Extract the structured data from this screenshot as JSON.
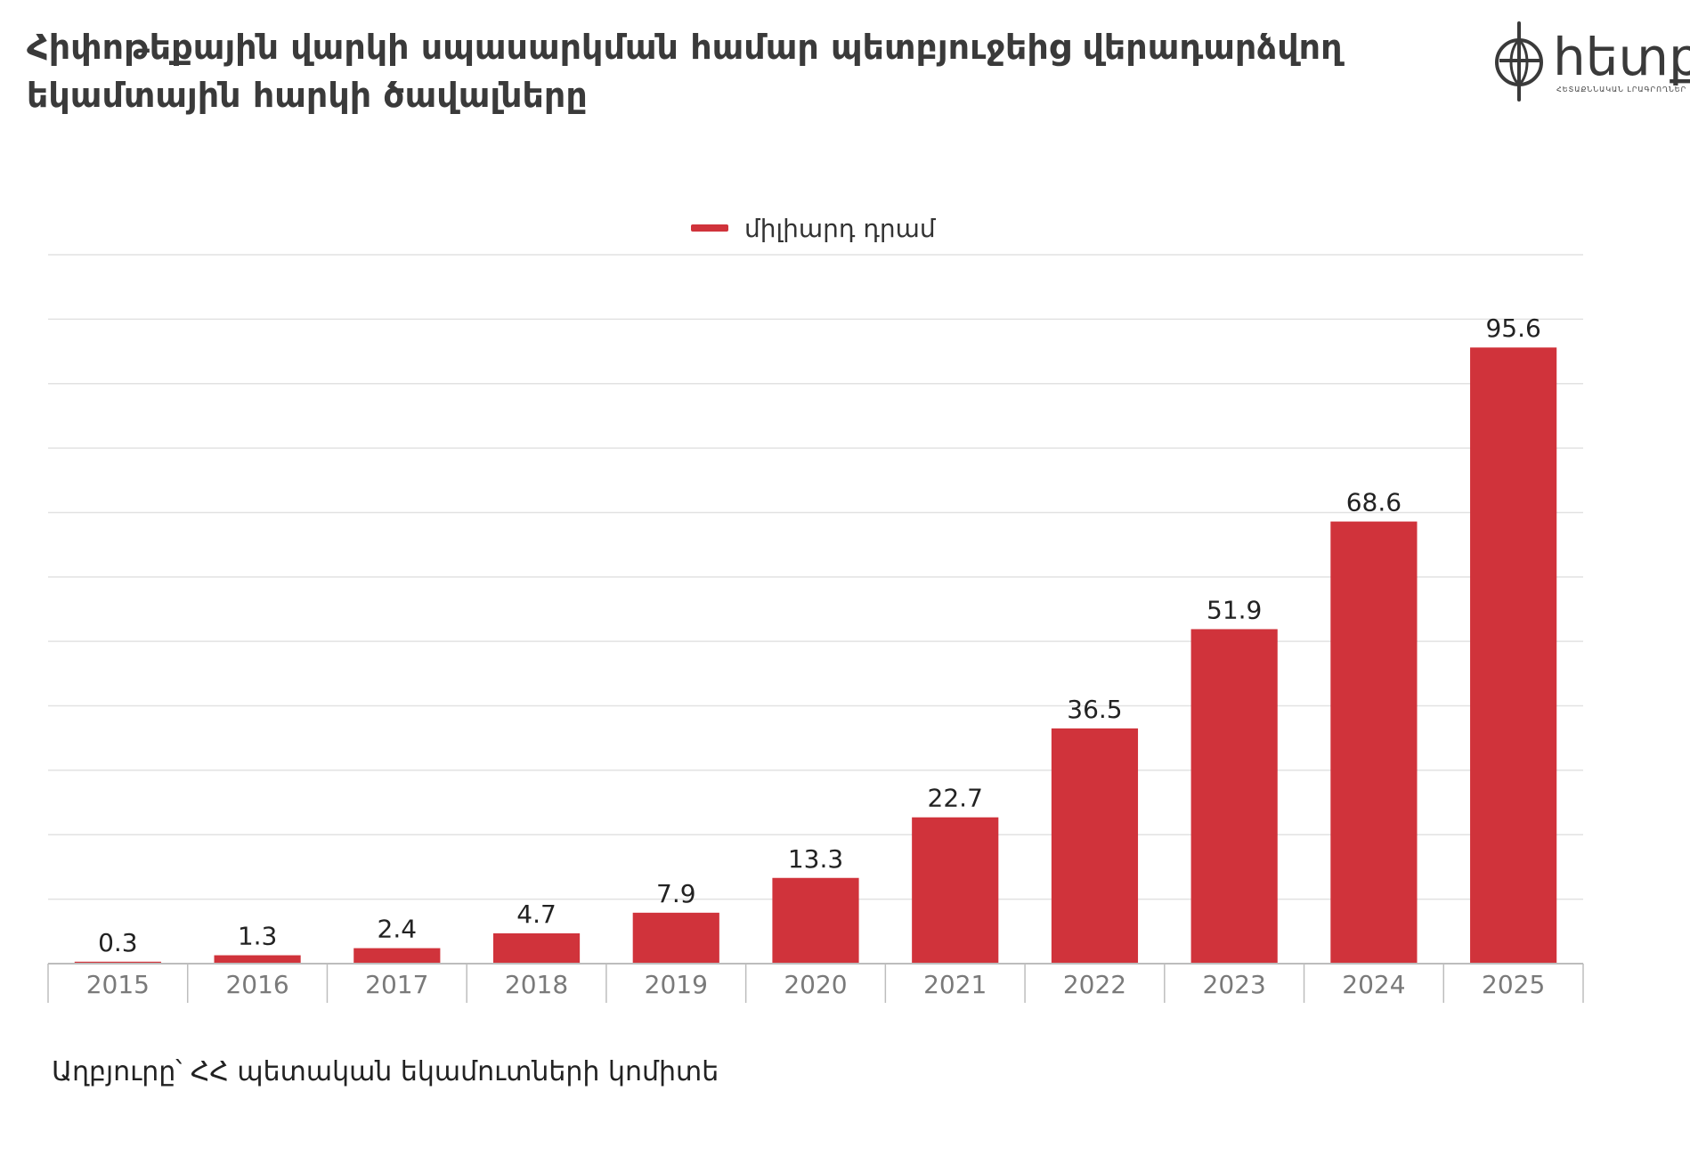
{
  "title": "Հիփոթեքային վարկի սպասարկման համար պետբյուջեից վերադարձվող եկամտային հարկի ծավալները",
  "logo": {
    "text": "հետք",
    "subtitle": "ՀԵՏԱՔՆՆԱԿԱՆ ԼՐԱԳՐՈՂՆԵՐ"
  },
  "source": "Աղբյուրը՝  ՀՀ պետական եկամուտների կոմիտե",
  "colors": {
    "bar": "#d0333b",
    "grid": "#e2e2e2",
    "axis": "#bdbdbd",
    "tick_text": "#7a7a7a",
    "label_text": "#222222"
  },
  "chart_data": {
    "type": "bar",
    "title": "",
    "xlabel": "",
    "ylabel": "",
    "categories": [
      "2015",
      "2016",
      "2017",
      "2018",
      "2019",
      "2020",
      "2021",
      "2022",
      "2023",
      "2024",
      "2025"
    ],
    "series": [
      {
        "name": "միլիարդ դրամ",
        "values": [
          0.3,
          1.3,
          2.4,
          4.7,
          7.9,
          13.3,
          22.7,
          36.5,
          51.9,
          68.6,
          95.6
        ]
      }
    ],
    "value_labels": [
      "0.3",
      "1.3",
      "2.4",
      "4.7",
      "7.9",
      "13.3",
      "22.7",
      "36.5",
      "51.9",
      "68.6",
      "95.6"
    ],
    "ylim": [
      0,
      110
    ],
    "grid": true,
    "legend": "top-center"
  }
}
